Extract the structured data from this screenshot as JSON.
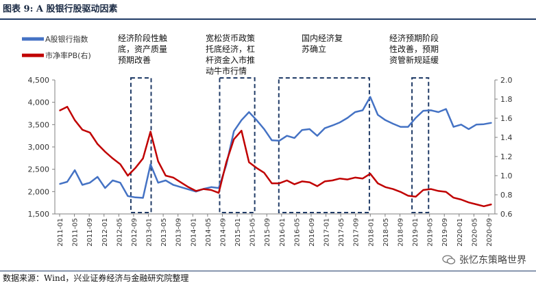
{
  "title": "图表 9: A 股银行股驱动因素",
  "source": "数据来源：Wind，兴业证券经济与金融研究院整理",
  "watermark": "张忆东策略世界",
  "colors": {
    "index": "#4472C4",
    "pb": "#C00000",
    "highlight": "#1f3a66",
    "axis": "#7f7f7f"
  },
  "chart_data": {
    "type": "line",
    "legend_placement": "top-left",
    "x_labels": [
      "2011-01",
      "2011-05",
      "2011-09",
      "2012-01",
      "2012-05",
      "2012-09",
      "2013-01",
      "2013-05",
      "2013-09",
      "2014-01",
      "2014-05",
      "2014-09",
      "2015-01",
      "2015-05",
      "2015-09",
      "2016-01",
      "2016-05",
      "2016-09",
      "2017-01",
      "2017-05",
      "2017-09",
      "2018-01",
      "2018-05",
      "2018-09",
      "2019-01",
      "2019-05",
      "2019-09",
      "2020-01",
      "2020-05",
      "2020-09"
    ],
    "y_left": {
      "range": [
        1500,
        4500
      ],
      "ticks": [
        "1,500",
        "2,000",
        "2,500",
        "3,000",
        "3,500",
        "4,000",
        "4,500"
      ]
    },
    "y_right": {
      "range": [
        0.6,
        2.0
      ],
      "ticks": [
        "0.6",
        "0.8",
        "1.0",
        "1.2",
        "1.4",
        "1.6",
        "1.8",
        "2.0"
      ]
    },
    "series": [
      {
        "name": "A股银行指数",
        "axis": "left",
        "values": [
          2170,
          2220,
          2480,
          2150,
          2200,
          2330,
          2080,
          2250,
          2200,
          1900,
          1870,
          1860,
          2610,
          2200,
          2250,
          2150,
          2100,
          2050,
          2000,
          2060,
          2100,
          2080,
          2600,
          3350,
          3600,
          3780,
          3600,
          3400,
          3150,
          3140,
          3250,
          3200,
          3380,
          3400,
          3250,
          3420,
          3480,
          3550,
          3650,
          3780,
          3820,
          4120,
          3720,
          3600,
          3520,
          3450,
          3450,
          3650,
          3810,
          3820,
          3780,
          3850,
          3450,
          3500,
          3400,
          3500,
          3510,
          3540
        ]
      },
      {
        "name": "市净率PB(右)",
        "axis": "right",
        "values": [
          1.68,
          1.72,
          1.58,
          1.48,
          1.45,
          1.33,
          1.25,
          1.18,
          1.12,
          1.0,
          1.08,
          1.18,
          1.46,
          1.15,
          1.0,
          0.98,
          0.93,
          0.88,
          0.84,
          0.86,
          0.85,
          0.82,
          1.14,
          1.38,
          1.47,
          1.14,
          1.08,
          1.03,
          0.92,
          0.92,
          0.95,
          0.91,
          0.94,
          0.93,
          0.89,
          0.94,
          0.95,
          0.97,
          0.96,
          0.98,
          0.97,
          1.02,
          0.92,
          0.88,
          0.86,
          0.83,
          0.79,
          0.78,
          0.85,
          0.86,
          0.84,
          0.83,
          0.77,
          0.75,
          0.72,
          0.7,
          0.68,
          0.7
        ]
      }
    ],
    "highlight_periods": [
      {
        "from": "2012-09",
        "to": "2013-01",
        "label": "经济阶段性触底，资产质量预期改善"
      },
      {
        "from": "2014-09",
        "to": "2015-05",
        "label": "宽松货币政策托底经济，杠杆资金入市推动牛市行情"
      },
      {
        "from": "2016-01",
        "to": "2017-12",
        "label": "国内经济复苏确立"
      },
      {
        "from": "2019-01",
        "to": "2019-04",
        "label": "经济预期阶段性改善，预期资管新规延缓"
      }
    ]
  }
}
